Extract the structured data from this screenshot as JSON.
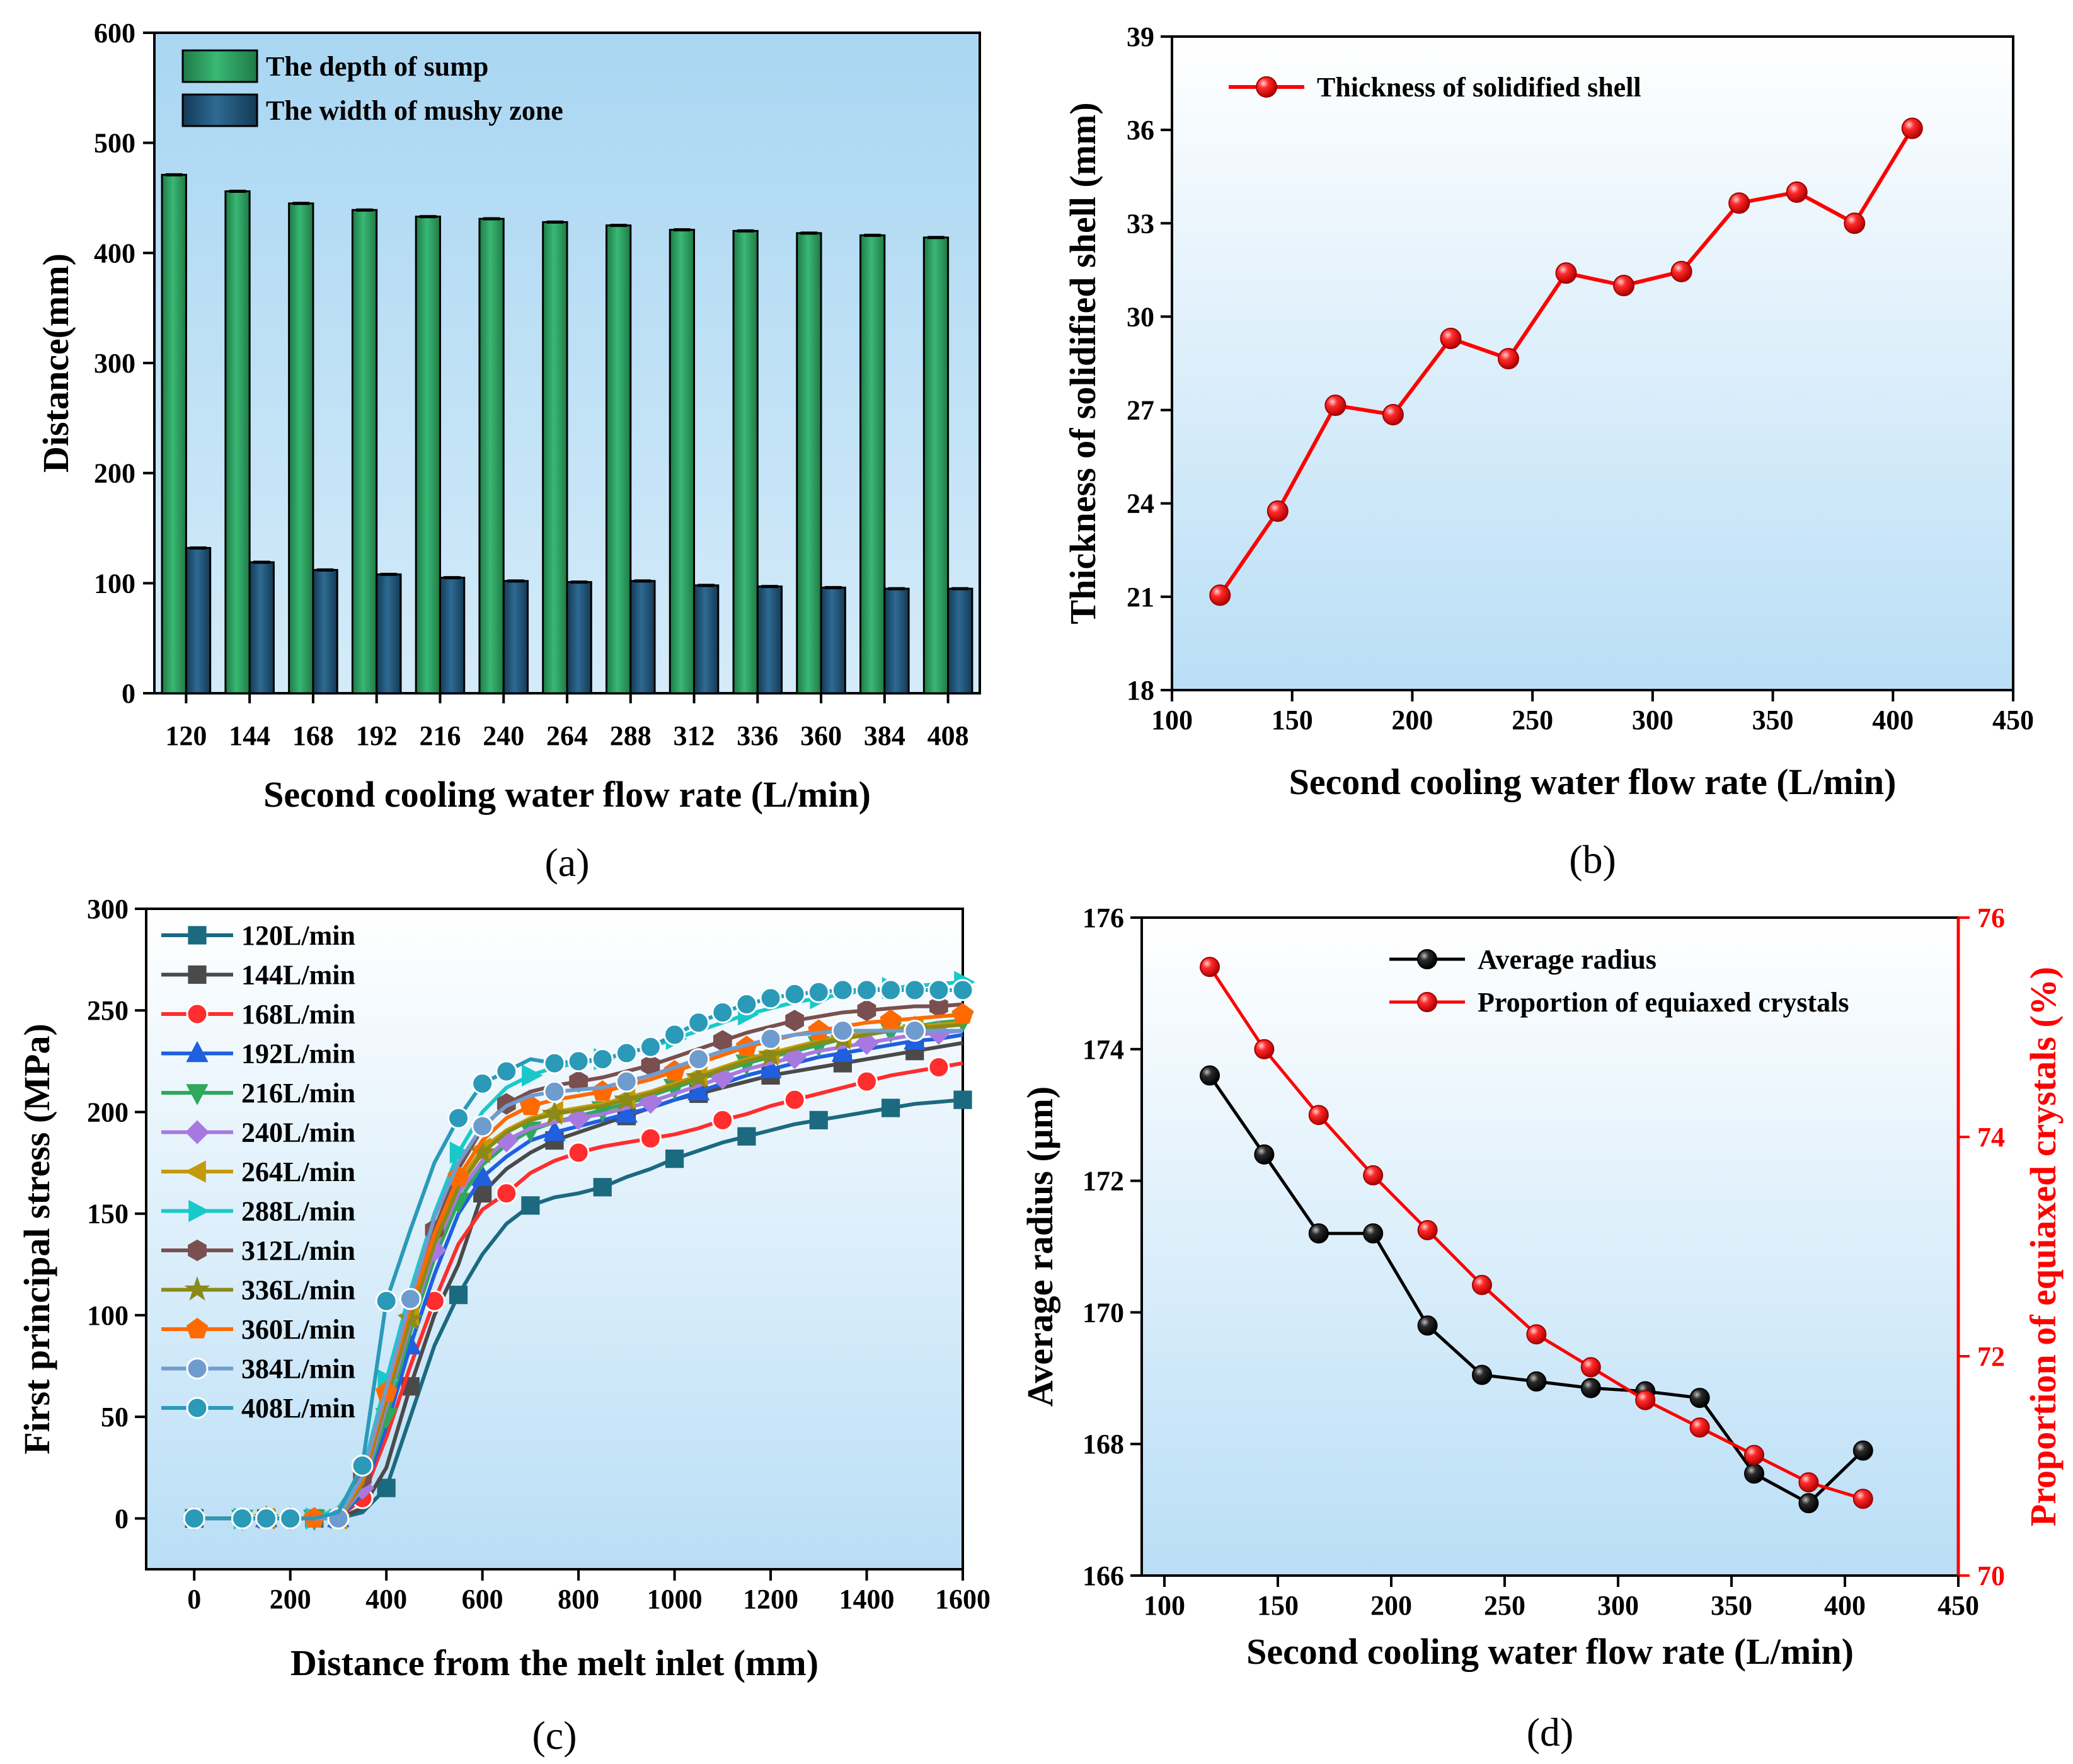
{
  "chart_data": [
    {
      "id": "a",
      "type": "bar",
      "panel_label": "(a)",
      "xlabel": "Second cooling water flow rate (L/min)",
      "ylabel": "Distance(mm)",
      "ylim": [
        0,
        600
      ],
      "yticks": [
        0,
        100,
        200,
        300,
        400,
        500,
        600
      ],
      "categories": [
        "120",
        "144",
        "168",
        "192",
        "216",
        "240",
        "264",
        "288",
        "312",
        "336",
        "360",
        "384",
        "408"
      ],
      "series": [
        {
          "name": "The depth of sump",
          "color": "#2e9e63",
          "values": [
            471,
            456,
            445,
            439,
            433,
            431,
            428,
            425,
            421,
            420,
            418,
            416,
            414
          ]
        },
        {
          "name": "The width of mushy zone",
          "color": "#1f4e6e",
          "values": [
            132,
            119,
            112,
            108,
            105,
            102,
            101,
            102,
            98,
            97,
            96,
            95,
            95
          ]
        }
      ],
      "legend": "top-left"
    },
    {
      "id": "b",
      "type": "line",
      "panel_label": "(b)",
      "xlabel": "Second cooling water flow rate (L/min)",
      "ylabel": "Thickness of solidified shell (mm)",
      "xlim": [
        100,
        450
      ],
      "xticks": [
        100,
        150,
        200,
        250,
        300,
        350,
        400,
        450
      ],
      "ylim": [
        18,
        39
      ],
      "yticks": [
        18,
        21,
        24,
        27,
        30,
        33,
        36,
        39
      ],
      "series": [
        {
          "name": "Thickness of solidified shell",
          "color": "#ff0000",
          "x": [
            120,
            144,
            168,
            192,
            216,
            240,
            264,
            288,
            312,
            336,
            360,
            384,
            408
          ],
          "y": [
            21.05,
            23.75,
            27.15,
            26.85,
            29.3,
            28.65,
            31.4,
            31.0,
            31.45,
            33.65,
            34.0,
            33.0,
            36.05
          ]
        }
      ],
      "legend": "top-left"
    },
    {
      "id": "c",
      "type": "line",
      "panel_label": "(c)",
      "xlabel": "Distance from the melt inlet (mm)",
      "ylabel": "First principal stress (MPa)",
      "xlim": [
        -100,
        1600
      ],
      "xticks": [
        0,
        200,
        400,
        600,
        800,
        1000,
        1200,
        1400,
        1600
      ],
      "ylim": [
        -25,
        300
      ],
      "yticks": [
        0,
        50,
        100,
        150,
        200,
        250,
        300
      ],
      "x": [
        0,
        100,
        150,
        200,
        250,
        300,
        350,
        400,
        450,
        500,
        550,
        600,
        650,
        700,
        750,
        800,
        850,
        900,
        950,
        1000,
        1050,
        1100,
        1150,
        1200,
        1250,
        1300,
        1350,
        1400,
        1450,
        1500,
        1550,
        1600
      ],
      "series": [
        {
          "name": "120L/min",
          "color": "#1b6a80",
          "marker": "square",
          "markevery": [
            0,
            4,
            7,
            10,
            13,
            16,
            19,
            22,
            25,
            28,
            31
          ],
          "values": [
            0,
            0,
            0,
            0,
            0,
            0,
            3,
            15,
            50,
            85,
            110,
            130,
            145,
            154,
            158,
            160,
            163,
            168,
            172,
            177,
            181,
            185,
            188,
            191,
            194,
            196,
            198,
            200,
            202,
            204,
            205,
            206
          ]
        },
        {
          "name": "144L/min",
          "color": "#4a4a4a",
          "marker": "square",
          "markevery": [
            0,
            2,
            5,
            8,
            11,
            14,
            17,
            20,
            23,
            26,
            29
          ],
          "values": [
            0,
            0,
            0,
            0,
            0,
            0,
            5,
            25,
            65,
            100,
            125,
            160,
            172,
            180,
            186,
            190,
            194,
            198,
            202,
            206,
            209,
            212,
            215,
            218,
            220,
            222,
            224,
            226,
            228,
            230,
            232,
            234
          ]
        },
        {
          "name": "168L/min",
          "color": "#ff2d2d",
          "marker": "circle",
          "markevery": [
            1,
            3,
            6,
            9,
            12,
            15,
            18,
            21,
            24,
            27,
            30
          ],
          "values": [
            0,
            0,
            0,
            0,
            0,
            0,
            10,
            40,
            75,
            107,
            135,
            152,
            160,
            170,
            176,
            180,
            183,
            185,
            187,
            189,
            192,
            196,
            199,
            203,
            206,
            209,
            212,
            215,
            218,
            220,
            222,
            224
          ]
        },
        {
          "name": "192L/min",
          "color": "#1f5fe0",
          "marker": "tri-up",
          "markevery": [
            2,
            5,
            8,
            11,
            14,
            17,
            20,
            23,
            26,
            29
          ],
          "values": [
            0,
            0,
            0,
            0,
            0,
            0,
            12,
            45,
            85,
            120,
            150,
            168,
            178,
            186,
            190,
            193,
            196,
            199,
            202,
            206,
            210,
            214,
            218,
            221,
            224,
            227,
            229,
            231,
            233,
            235,
            236,
            238
          ]
        },
        {
          "name": "216L/min",
          "color": "#2fa85a",
          "marker": "tri-down",
          "markevery": [
            1,
            4,
            7,
            10,
            13,
            16,
            19,
            22,
            25,
            28,
            31
          ],
          "values": [
            0,
            0,
            0,
            0,
            0,
            0,
            14,
            50,
            92,
            128,
            156,
            174,
            184,
            191,
            195,
            198,
            201,
            204,
            208,
            212,
            216,
            220,
            224,
            227,
            230,
            233,
            236,
            238,
            240,
            242,
            244,
            245
          ]
        },
        {
          "name": "240L/min",
          "color": "#a779e0",
          "marker": "diamond",
          "markevery": [
            0,
            3,
            6,
            9,
            12,
            15,
            18,
            21,
            24,
            27,
            30
          ],
          "values": [
            0,
            0,
            0,
            0,
            0,
            0,
            15,
            55,
            96,
            132,
            160,
            176,
            186,
            192,
            195,
            197,
            199,
            202,
            205,
            209,
            213,
            217,
            221,
            224,
            227,
            230,
            232,
            234,
            236,
            238,
            239,
            240
          ]
        },
        {
          "name": "264L/min",
          "color": "#c49a0a",
          "marker": "tri-left",
          "markevery": [
            2,
            5,
            8,
            11,
            14,
            17,
            20,
            23,
            26,
            29
          ],
          "values": [
            0,
            0,
            0,
            0,
            0,
            0,
            18,
            60,
            100,
            138,
            165,
            182,
            191,
            197,
            200,
            202,
            204,
            207,
            210,
            214,
            218,
            222,
            226,
            229,
            232,
            235,
            237,
            239,
            241,
            242,
            243,
            244
          ]
        },
        {
          "name": "288L/min",
          "color": "#19c9c9",
          "marker": "tri-right",
          "markevery": [
            1,
            4,
            7,
            10,
            13,
            16,
            19,
            22,
            25,
            28,
            31
          ],
          "values": [
            0,
            0,
            0,
            0,
            0,
            5,
            22,
            68,
            112,
            150,
            180,
            200,
            212,
            218,
            222,
            224,
            226,
            229,
            232,
            236,
            240,
            244,
            248,
            251,
            254,
            256,
            258,
            260,
            261,
            262,
            263,
            264
          ]
        },
        {
          "name": "312L/min",
          "color": "#7a4f4f",
          "marker": "hexagon",
          "markevery": [
            0,
            3,
            6,
            9,
            12,
            15,
            18,
            21,
            24,
            27,
            30
          ],
          "values": [
            0,
            0,
            0,
            0,
            0,
            0,
            20,
            62,
            105,
            142,
            172,
            192,
            204,
            210,
            213,
            215,
            217,
            220,
            223,
            227,
            231,
            235,
            239,
            242,
            245,
            247,
            249,
            250,
            251,
            252,
            252,
            253
          ]
        },
        {
          "name": "336L/min",
          "color": "#8a8a18",
          "marker": "star",
          "markevery": [
            2,
            5,
            8,
            11,
            14,
            17,
            20,
            23,
            26,
            29
          ],
          "values": [
            0,
            0,
            0,
            0,
            0,
            0,
            17,
            58,
            98,
            135,
            163,
            180,
            190,
            196,
            199,
            201,
            203,
            206,
            209,
            213,
            217,
            221,
            225,
            228,
            231,
            234,
            236,
            238,
            240,
            241,
            242,
            243
          ]
        },
        {
          "name": "360L/min",
          "color": "#ff6a00",
          "marker": "pentagon",
          "markevery": [
            1,
            4,
            7,
            10,
            13,
            16,
            19,
            22,
            25,
            28,
            31
          ],
          "values": [
            0,
            0,
            0,
            0,
            0,
            0,
            19,
            62,
            104,
            140,
            168,
            186,
            197,
            203,
            206,
            208,
            210,
            213,
            216,
            220,
            224,
            228,
            232,
            235,
            238,
            240,
            242,
            244,
            245,
            246,
            247,
            248
          ]
        },
        {
          "name": "384L/min",
          "color": "#6f9ccf",
          "marker": "circle",
          "markevery": [
            0,
            2,
            5,
            8,
            11,
            14,
            17,
            20,
            23,
            26,
            29
          ],
          "values": [
            0,
            0,
            0,
            0,
            0,
            0,
            21,
            64,
            108,
            148,
            175,
            193,
            203,
            208,
            210,
            211,
            212,
            215,
            218,
            222,
            226,
            230,
            233,
            236,
            238,
            239,
            240,
            240,
            240,
            240,
            240,
            240
          ]
        },
        {
          "name": "408L/min",
          "color": "#2a9ab8",
          "marker": "circle",
          "markevery": [
            0,
            1,
            2,
            3,
            6,
            7,
            10,
            11,
            12,
            14,
            15,
            16,
            17,
            18,
            19,
            20,
            21,
            22,
            23,
            24,
            25,
            26,
            27,
            28,
            29,
            30,
            31
          ],
          "values": [
            0,
            0,
            0,
            0,
            0,
            3,
            26,
            107,
            142,
            175,
            197,
            214,
            220,
            226,
            224,
            225,
            226,
            229,
            232,
            238,
            244,
            249,
            253,
            256,
            258,
            259,
            260,
            260,
            260,
            260,
            260,
            260
          ]
        }
      ],
      "legend": "top-left"
    },
    {
      "id": "d",
      "type": "line",
      "panel_label": "(d)",
      "xlabel": "Second cooling water flow rate (L/min)",
      "ylabel": "Average radius (μm)",
      "ylabel_right": "Proportion of equiaxed crystals (%)",
      "xlim": [
        90,
        450
      ],
      "xticks": [
        100,
        150,
        200,
        250,
        300,
        350,
        400,
        450
      ],
      "ylim": [
        166,
        176
      ],
      "yticks": [
        166,
        168,
        170,
        172,
        174,
        176
      ],
      "ylim_right": [
        70,
        76
      ],
      "yticks_right": [
        70,
        72,
        74,
        76
      ],
      "series": [
        {
          "name": "Average radius",
          "color": "#000000",
          "axis": "left",
          "x": [
            120,
            144,
            168,
            192,
            216,
            240,
            264,
            288,
            312,
            336,
            360,
            384,
            408
          ],
          "y": [
            173.6,
            172.4,
            171.2,
            171.2,
            169.8,
            169.05,
            168.95,
            168.85,
            168.8,
            168.7,
            167.55,
            167.1,
            167.9
          ]
        },
        {
          "name": "Proportion of equiaxed crystals",
          "color": "#ff0000",
          "axis": "right",
          "x": [
            120,
            144,
            168,
            192,
            216,
            240,
            264,
            288,
            312,
            336,
            360,
            384,
            408
          ],
          "y": [
            75.55,
            74.8,
            74.2,
            73.65,
            73.15,
            72.65,
            72.2,
            71.9,
            71.6,
            71.35,
            71.1,
            70.85,
            70.7
          ]
        }
      ],
      "legend": "top-right"
    }
  ]
}
